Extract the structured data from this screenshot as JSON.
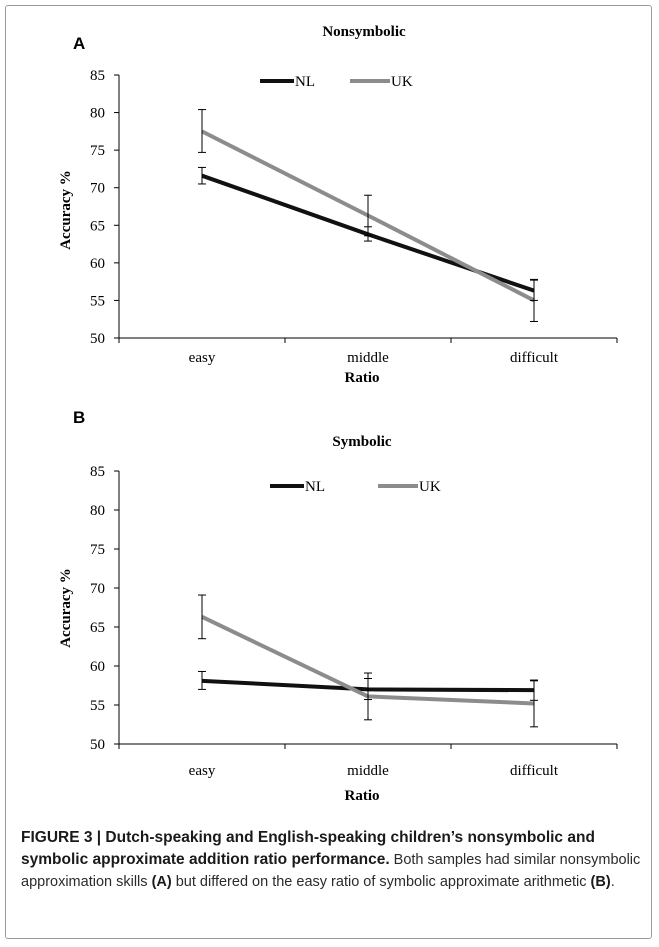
{
  "colors": {
    "NL": "#111111",
    "UK": "#8c8c8c",
    "axis": "#000000",
    "frame": "#9a9a9a"
  },
  "chart_data": [
    {
      "panel": "A",
      "type": "line",
      "title": "Nonsymbolic",
      "xlabel": "Ratio",
      "ylabel": "Accuracy %",
      "categories": [
        "easy",
        "middle",
        "difficult"
      ],
      "ylim": [
        50,
        85
      ],
      "yticks": [
        50,
        55,
        60,
        65,
        70,
        75,
        80,
        85
      ],
      "legend_position": "top",
      "grid": false,
      "series": [
        {
          "name": "NL",
          "color": "#111111",
          "values": [
            71.6,
            63.8,
            56.3
          ],
          "err_low": [
            70.5,
            62.9,
            55.0
          ],
          "err_high": [
            72.7,
            64.8,
            57.7
          ]
        },
        {
          "name": "UK",
          "color": "#8c8c8c",
          "values": [
            77.5,
            66.3,
            55.0
          ],
          "err_low": [
            74.7,
            63.6,
            52.2
          ],
          "err_high": [
            80.4,
            69.0,
            57.8
          ]
        }
      ]
    },
    {
      "panel": "B",
      "type": "line",
      "title": "Symbolic",
      "xlabel": "Ratio",
      "ylabel": "Accuracy %",
      "categories": [
        "easy",
        "middle",
        "difficult"
      ],
      "ylim": [
        50,
        85
      ],
      "yticks": [
        50,
        55,
        60,
        65,
        70,
        75,
        80,
        85
      ],
      "legend_position": "top",
      "grid": false,
      "series": [
        {
          "name": "NL",
          "color": "#111111",
          "values": [
            58.1,
            57.0,
            56.9
          ],
          "err_low": [
            57.0,
            55.7,
            55.6
          ],
          "err_high": [
            59.3,
            58.4,
            58.2
          ]
        },
        {
          "name": "UK",
          "color": "#8c8c8c",
          "values": [
            66.3,
            56.1,
            55.2
          ],
          "err_low": [
            63.5,
            53.1,
            52.2
          ],
          "err_high": [
            69.1,
            59.1,
            58.1
          ]
        }
      ]
    }
  ],
  "caption": {
    "title": "FIGURE 3 | Dutch-speaking and English-speaking children’s nonsymbolic and symbolic approximate addition ratio performance.",
    "body_before_a": "Both samples had similar nonsymbolic approximation skills ",
    "ref_a": "(A)",
    "body_between": " but differed on the easy ratio of symbolic approximate arithmetic ",
    "ref_b": "(B)",
    "body_end": "."
  }
}
